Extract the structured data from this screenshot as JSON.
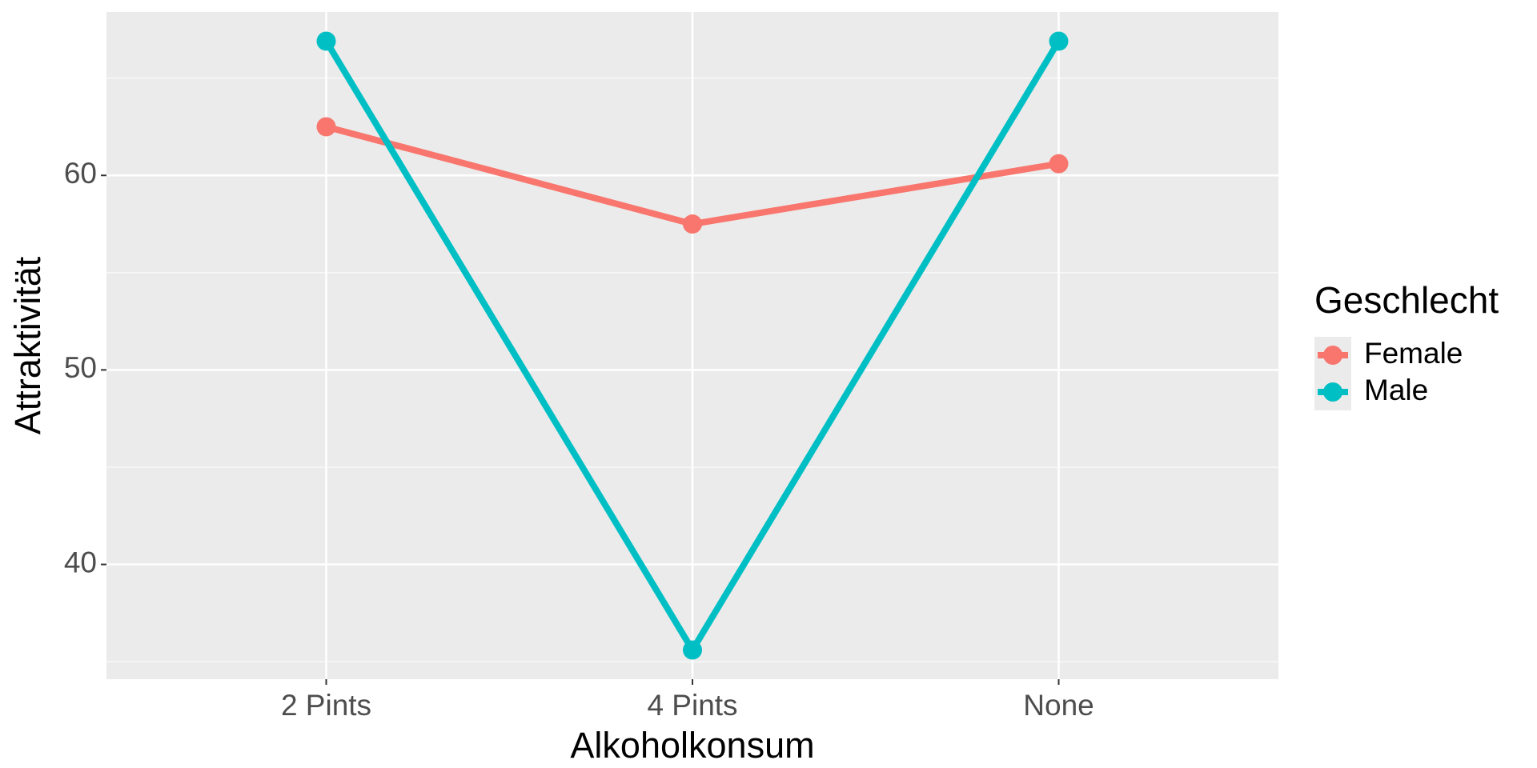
{
  "chart_data": {
    "type": "line",
    "x_label": "Alkoholkonsum",
    "y_label": "Attraktivität",
    "categories": [
      "2 Pints",
      "4 Pints",
      "None"
    ],
    "series": [
      {
        "name": "Female",
        "color": "#F8766D",
        "values": [
          62.5,
          57.5,
          60.6
        ]
      },
      {
        "name": "Male",
        "color": "#00BFC4",
        "values": [
          66.9,
          35.6,
          66.9
        ]
      }
    ],
    "ylim": [
      34.1,
      68.4
    ],
    "yticks": [
      40,
      50,
      60
    ],
    "grid": true,
    "legend_title": "Geschlecht",
    "legend": "right"
  }
}
